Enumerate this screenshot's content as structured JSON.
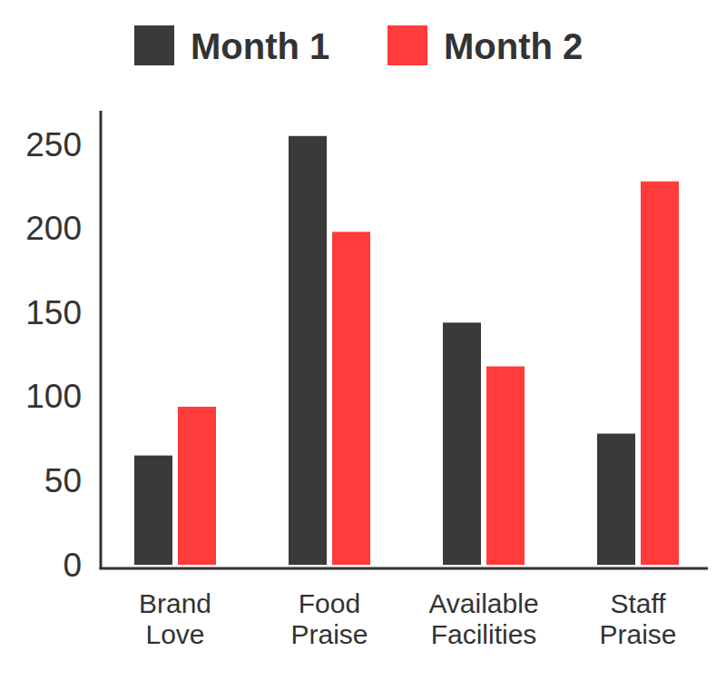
{
  "chart_data": {
    "type": "bar",
    "categories": [
      "Brand Love",
      "Food Praise",
      "Available Facilities",
      "Staff Praise"
    ],
    "series": [
      {
        "name": "Month 1",
        "color": "#3a3a3a",
        "values": [
          65,
          255,
          144,
          78
        ]
      },
      {
        "name": "Month 2",
        "color": "#ff3b3b",
        "values": [
          94,
          198,
          118,
          228
        ]
      }
    ],
    "ylim": [
      0,
      270
    ],
    "yticks": [
      0,
      50,
      100,
      150,
      200,
      250
    ],
    "grid": false,
    "legend": "top"
  }
}
